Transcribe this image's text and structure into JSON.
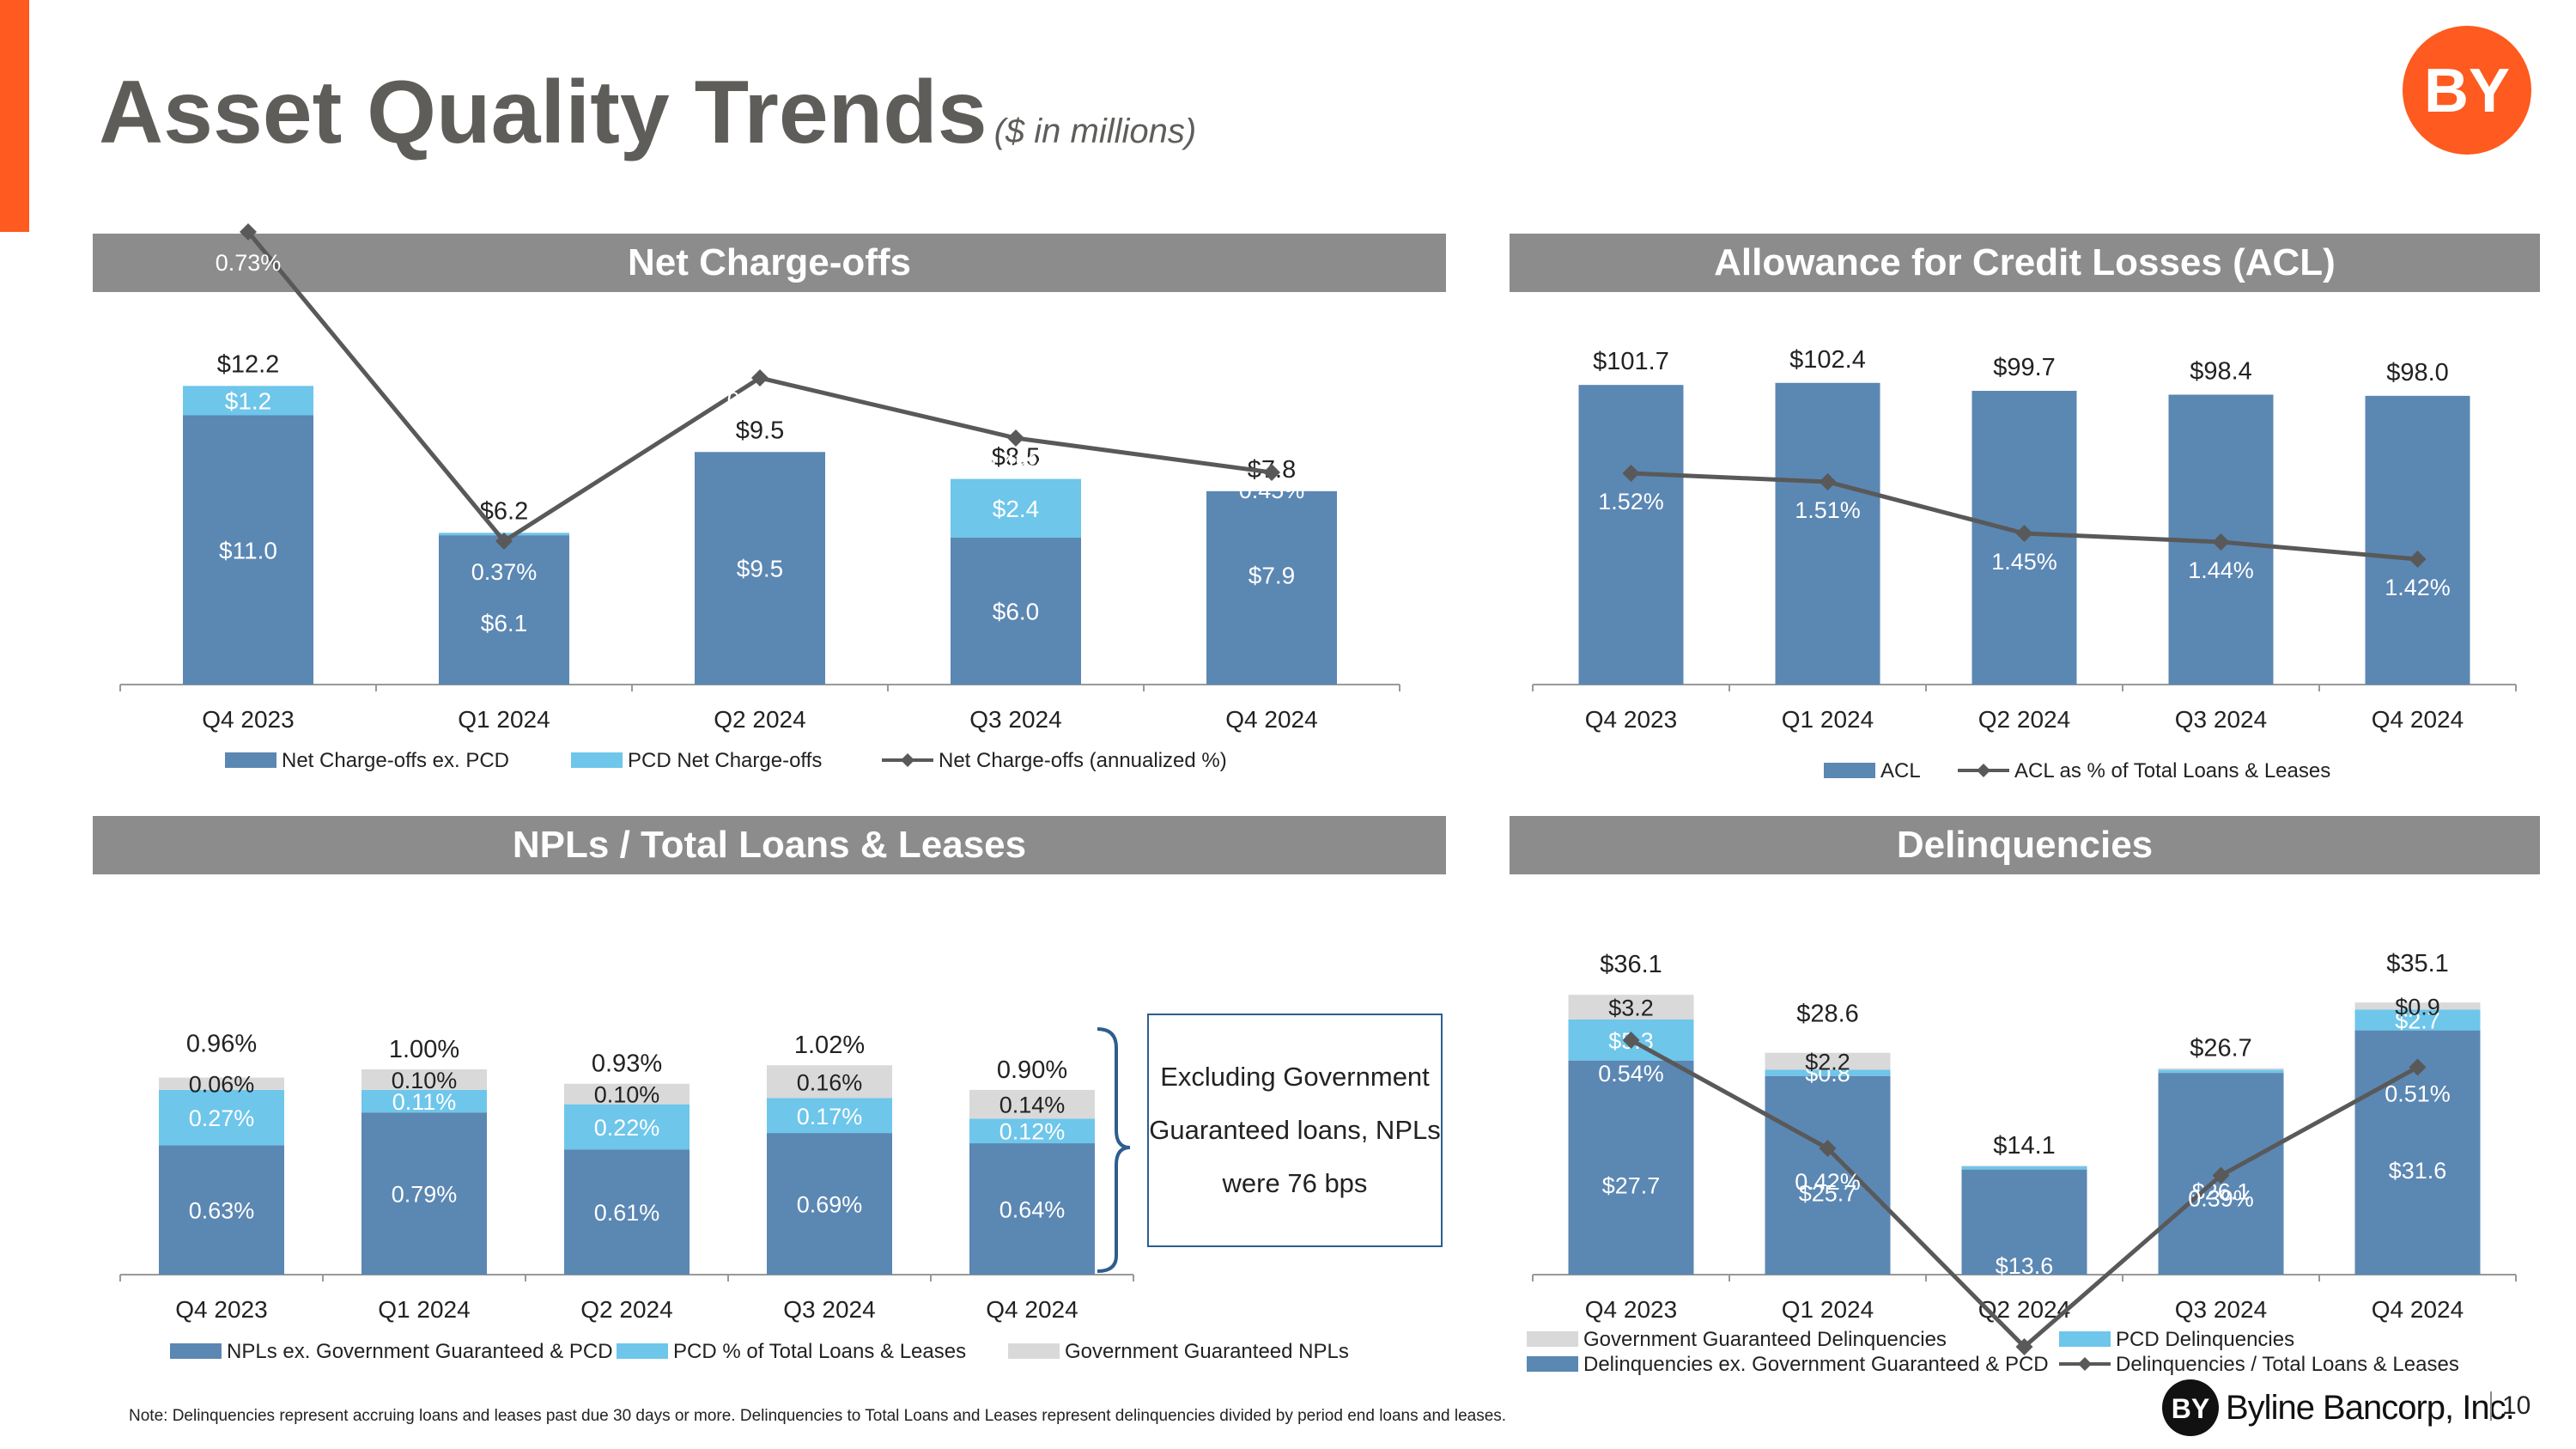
{
  "page": {
    "title": "Asset Quality Trends",
    "subtitle": "($ in millions)",
    "note_box": "Excluding Government Guaranteed loans, NPLs were 76 bps",
    "footnote": "Note: Delinquencies represent accruing loans and leases past due 30 days or more. Delinquencies to Total Loans and Leases represent delinquencies divided by period end loans and leases.",
    "brand_name": "Byline Bancorp, Inc.",
    "logo_text": "BY",
    "page_number": "10",
    "colors": {
      "accent": "#ff5a1f",
      "dark_blue": "#5b87b3",
      "light_blue": "#6ec6ea",
      "gray": "#d9d9d9",
      "line": "#595959",
      "header": "#8c8c8c"
    }
  },
  "chart_data": [
    {
      "id": "net-charge-offs",
      "title": "Net Charge-offs",
      "type": "bar",
      "stacked": true,
      "categories": [
        "Q4 2023",
        "Q1 2024",
        "Q2 2024",
        "Q3 2024",
        "Q4 2024"
      ],
      "series": [
        {
          "name": "Net Charge-offs ex. PCD",
          "values": [
            11.0,
            6.1,
            9.5,
            6.0,
            7.9
          ],
          "labels": [
            "$11.0",
            "$6.1",
            "$9.5",
            "$6.0",
            "$7.9"
          ]
        },
        {
          "name": "PCD Net Charge-offs",
          "values": [
            1.2,
            0.1,
            0.0,
            2.4,
            -0.1
          ],
          "labels": [
            "$1.2",
            "",
            "",
            "$2.4",
            ""
          ]
        },
        {
          "name": "Net Charge-offs (annualized %)",
          "type": "line",
          "values": [
            0.73,
            0.37,
            0.56,
            0.49,
            0.45
          ],
          "labels": [
            "0.73%",
            "0.37%",
            "0.56%",
            "0.49%",
            "0.45%"
          ]
        }
      ],
      "totals": [
        "$12.2",
        "$6.2",
        "$9.5",
        "$8.5",
        "$7.8"
      ],
      "legend_placement": "bottom"
    },
    {
      "id": "acl",
      "title": "Allowance for Credit Losses (ACL)",
      "type": "bar",
      "categories": [
        "Q4 2023",
        "Q1 2024",
        "Q2 2024",
        "Q3 2024",
        "Q4 2024"
      ],
      "series": [
        {
          "name": "ACL",
          "values": [
            101.7,
            102.4,
            99.7,
            98.4,
            98.0
          ],
          "labels": [
            "$101.7",
            "$102.4",
            "$99.7",
            "$98.4",
            "$98.0"
          ]
        },
        {
          "name": "ACL as % of Total Loans & Leases",
          "type": "line",
          "values": [
            1.52,
            1.51,
            1.45,
            1.44,
            1.42
          ],
          "labels": [
            "1.52%",
            "1.51%",
            "1.45%",
            "1.44%",
            "1.42%"
          ]
        }
      ],
      "legend_placement": "bottom"
    },
    {
      "id": "npls",
      "title": "NPLs / Total Loans & Leases",
      "type": "bar",
      "stacked": true,
      "categories": [
        "Q4 2023",
        "Q1 2024",
        "Q2 2024",
        "Q3 2024",
        "Q4 2024"
      ],
      "series": [
        {
          "name": "NPLs ex. Government Guaranteed & PCD",
          "values": [
            0.63,
            0.79,
            0.61,
            0.69,
            0.64
          ],
          "labels": [
            "0.63%",
            "0.79%",
            "0.61%",
            "0.69%",
            "0.64%"
          ]
        },
        {
          "name": "PCD % of Total Loans & Leases",
          "values": [
            0.27,
            0.11,
            0.22,
            0.17,
            0.12
          ],
          "labels": [
            "0.27%",
            "0.11%",
            "0.22%",
            "0.17%",
            "0.12%"
          ]
        },
        {
          "name": "Government Guaranteed NPLs",
          "values": [
            0.06,
            0.1,
            0.1,
            0.16,
            0.14
          ],
          "labels": [
            "0.06%",
            "0.10%",
            "0.10%",
            "0.16%",
            "0.14%"
          ]
        }
      ],
      "totals": [
        "0.96%",
        "1.00%",
        "0.93%",
        "1.02%",
        "0.90%"
      ],
      "legend_placement": "bottom"
    },
    {
      "id": "delinquencies",
      "title": "Delinquencies",
      "type": "bar",
      "stacked": true,
      "categories": [
        "Q4 2023",
        "Q1 2024",
        "Q2 2024",
        "Q3 2024",
        "Q4 2024"
      ],
      "series": [
        {
          "name": "Delinquencies ex. Government Guaranteed & PCD",
          "values": [
            27.7,
            25.7,
            13.6,
            26.1,
            31.6
          ],
          "labels": [
            "$27.7",
            "$25.7",
            "$13.6",
            "$26.1",
            "$31.6"
          ]
        },
        {
          "name": "PCD Delinquencies",
          "values": [
            5.3,
            0.8,
            0.4,
            0.4,
            2.7
          ],
          "labels": [
            "$5.3",
            "$0.8",
            "",
            "",
            "$2.7"
          ]
        },
        {
          "name": "Government Guaranteed Delinquencies",
          "values": [
            3.2,
            2.2,
            0.1,
            0.2,
            0.9
          ],
          "labels": [
            "$3.2",
            "$2.2",
            "",
            "",
            "$0.9"
          ]
        },
        {
          "name": "Delinquencies / Total Loans & Leases",
          "type": "line",
          "values": [
            0.54,
            0.42,
            0.2,
            0.39,
            0.51
          ],
          "labels": [
            "0.54%",
            "0.42%",
            "0.20%",
            "0.39%",
            "0.51%"
          ]
        }
      ],
      "totals": [
        "$36.1",
        "$28.6",
        "$14.1",
        "$26.7",
        "$35.1"
      ],
      "legend_placement": "bottom"
    }
  ]
}
